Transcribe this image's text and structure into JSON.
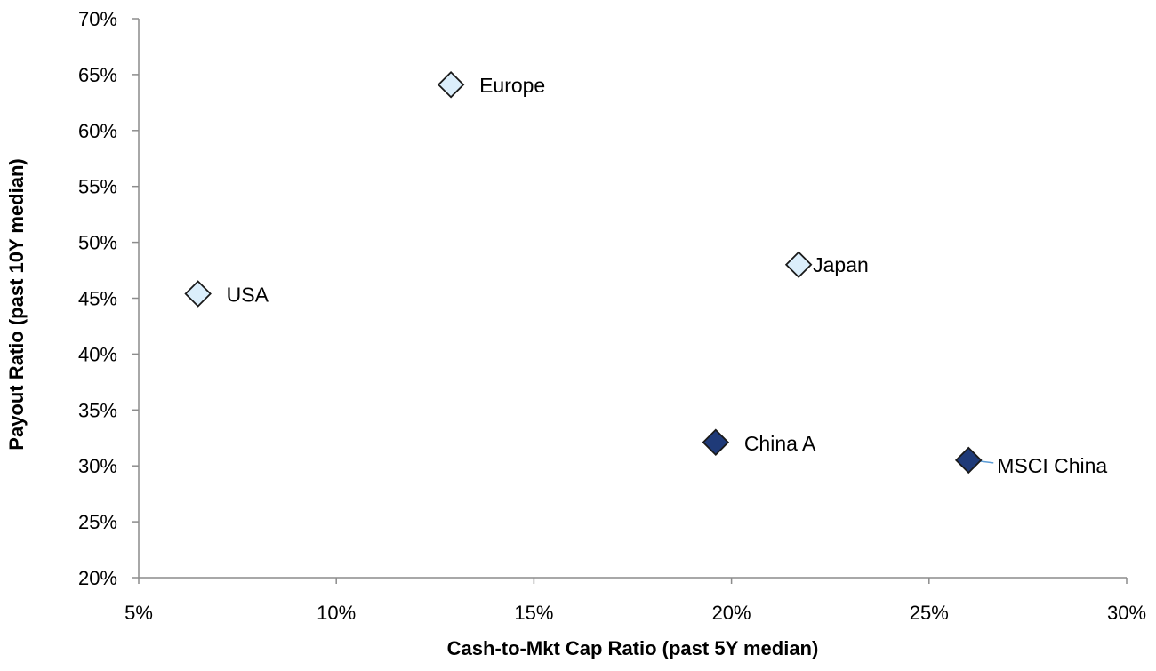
{
  "chart_data": {
    "type": "scatter",
    "title": "",
    "xlabel": "Cash-to-Mkt Cap Ratio (past 5Y median)",
    "ylabel": "Payout Ratio (past 10Y median)",
    "xlim": [
      5,
      30
    ],
    "ylim": [
      20,
      70
    ],
    "x_ticks": [
      5,
      10,
      15,
      20,
      25,
      30
    ],
    "y_ticks": [
      20,
      25,
      30,
      35,
      40,
      45,
      50,
      55,
      60,
      65,
      70
    ],
    "tick_format": "percent",
    "grid": false,
    "legend": "none",
    "marker": "diamond",
    "colors": {
      "light_fill": "#dbeefb",
      "dark_fill": "#1f3a78",
      "marker_stroke": "#1a1a1a",
      "leader_line": "#5b9bd5",
      "axis": "#8c8c8c"
    },
    "points": [
      {
        "label": "Europe",
        "x": 12.9,
        "y": 64.1,
        "style": "light"
      },
      {
        "label": "USA",
        "x": 6.5,
        "y": 45.4,
        "style": "light"
      },
      {
        "label": "Japan",
        "x": 21.7,
        "y": 48.0,
        "style": "light"
      },
      {
        "label": "China A",
        "x": 19.6,
        "y": 32.1,
        "style": "dark"
      },
      {
        "label": "MSCI China",
        "x": 26.0,
        "y": 30.5,
        "style": "dark"
      }
    ]
  }
}
